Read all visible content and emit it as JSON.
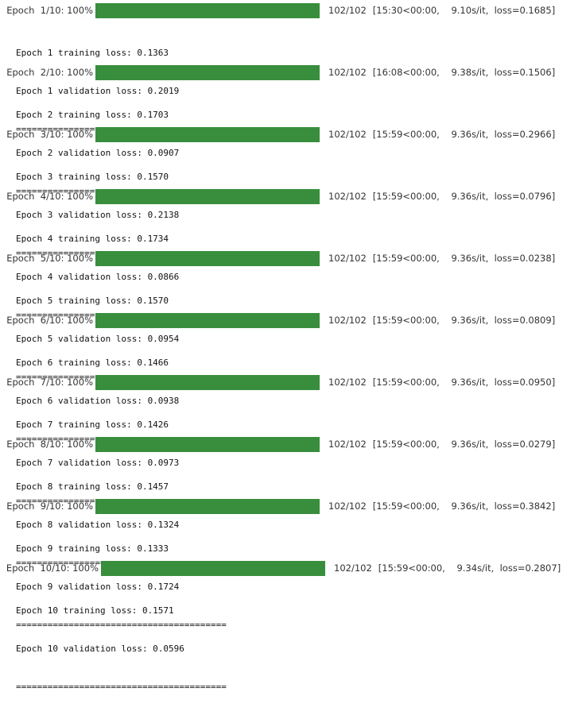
{
  "epochs": [
    {
      "prefix": "Epoch  1/10: 100%",
      "progress": 1.0,
      "count": "102/102",
      "stats": "[15:30<00:00,    9.10s/it,  loss=0.1685]",
      "train": "Epoch 1 training loss: 0.1363",
      "val": "Epoch 1 validation loss: 0.2019",
      "sep": "========================================"
    },
    {
      "prefix": "Epoch  2/10: 100%",
      "progress": 1.0,
      "count": "102/102",
      "stats": "[16:08<00:00,    9.38s/it,  loss=0.1506]",
      "train": "Epoch 2 training loss: 0.1703",
      "val": "Epoch 2 validation loss: 0.0907",
      "sep": "========================================"
    },
    {
      "prefix": "Epoch  3/10: 100%",
      "progress": 1.0,
      "count": "102/102",
      "stats": "[15:59<00:00,    9.36s/it,  loss=0.2966]",
      "train": "Epoch 3 training loss: 0.1570",
      "val": "Epoch 3 validation loss: 0.2138",
      "sep": "========================================"
    },
    {
      "prefix": "Epoch  4/10: 100%",
      "progress": 1.0,
      "count": "102/102",
      "stats": "[15:59<00:00,    9.36s/it,  loss=0.0796]",
      "train": "Epoch 4 training loss: 0.1734",
      "val": "Epoch 4 validation loss: 0.0866",
      "sep": "========================================"
    },
    {
      "prefix": "Epoch  5/10: 100%",
      "progress": 1.0,
      "count": "102/102",
      "stats": "[15:59<00:00,    9.36s/it,  loss=0.0238]",
      "train": "Epoch 5 training loss: 0.1570",
      "val": "Epoch 5 validation loss: 0.0954",
      "sep": "========================================"
    },
    {
      "prefix": "Epoch  6/10: 100%",
      "progress": 1.0,
      "count": "102/102",
      "stats": "[15:59<00:00,    9.36s/it,  loss=0.0809]",
      "train": "Epoch 6 training loss: 0.1466",
      "val": "Epoch 6 validation loss: 0.0938",
      "sep": "========================================"
    },
    {
      "prefix": "Epoch  7/10: 100%",
      "progress": 1.0,
      "count": "102/102",
      "stats": "[15:59<00:00,    9.36s/it,  loss=0.0950]",
      "train": "Epoch 7 training loss: 0.1426",
      "val": "Epoch 7 validation loss: 0.0973",
      "sep": "========================================"
    },
    {
      "prefix": "Epoch  8/10: 100%",
      "progress": 1.0,
      "count": "102/102",
      "stats": "[15:59<00:00,    9.36s/it,  loss=0.0279]",
      "train": "Epoch 8 training loss: 0.1457",
      "val": "Epoch 8 validation loss: 0.1324",
      "sep": "========================================"
    },
    {
      "prefix": "Epoch  9/10: 100%",
      "progress": 1.0,
      "count": "102/102",
      "stats": "[15:59<00:00,    9.36s/it,  loss=0.3842]",
      "train": "Epoch 9 training loss: 0.1333",
      "val": "Epoch 9 validation loss: 0.1724",
      "sep": "========================================"
    },
    {
      "prefix": "Epoch  10/10: 100%",
      "progress": 1.0,
      "count": "102/102",
      "stats": "[15:59<00:00,    9.34s/it,  loss=0.2807]",
      "train": "Epoch 10 training loss: 0.1571",
      "val": "Epoch 10 validation loss: 0.0596",
      "sep": "========================================"
    }
  ],
  "colors": {
    "bar_fill": "#388e3c",
    "bar_track": "#e6e6e6"
  }
}
